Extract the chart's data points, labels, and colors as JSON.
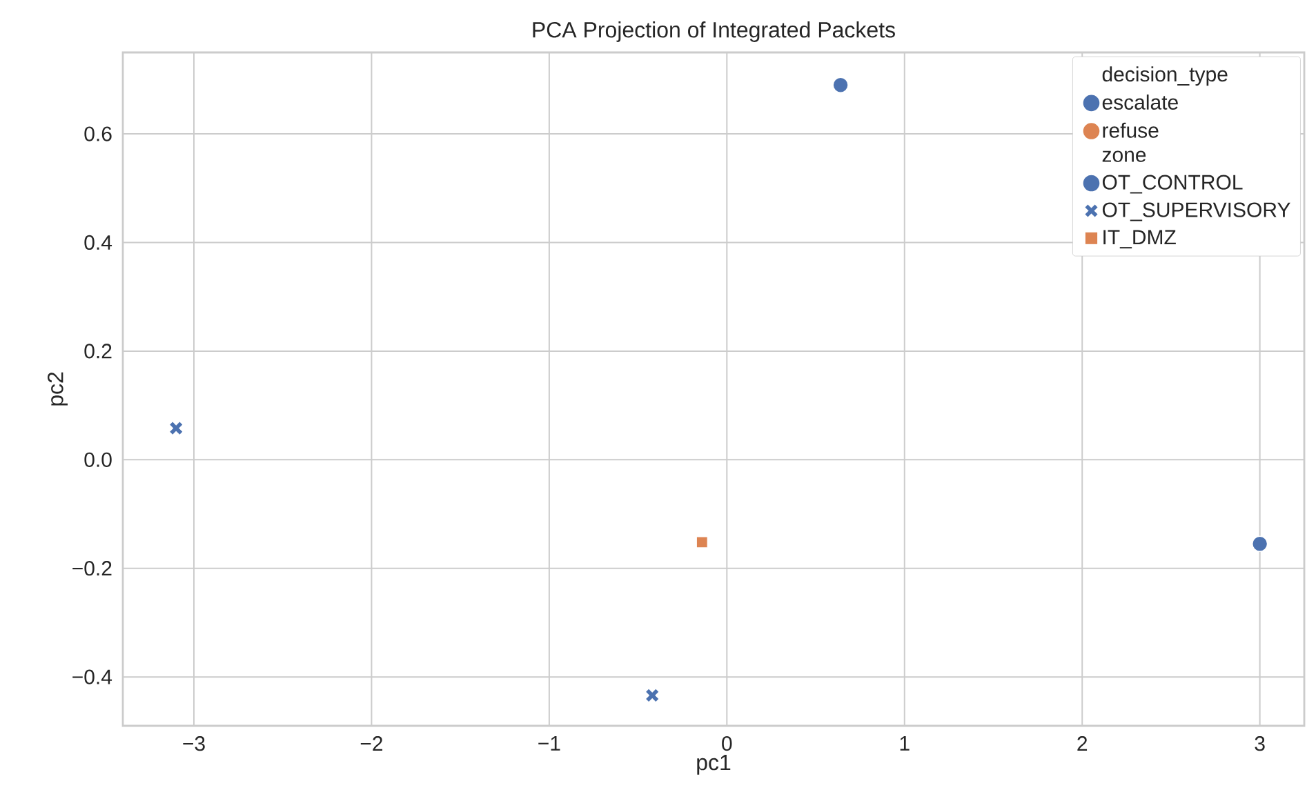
{
  "chart_data": {
    "type": "scatter",
    "title": "PCA Projection of Integrated Packets",
    "xlabel": "pc1",
    "ylabel": "pc2",
    "legend_title": "decision_type",
    "annotations": [
      "escalate",
      "refuse",
      "zone"
    ],
    "series": [
      {
        "name": "OT_CONTROL",
        "color": "#4c72b0",
        "marker": "circle",
        "x": [
          0.64,
          3.0
        ],
        "values": [
          0.69,
          -0.155
        ]
      },
      {
        "name": "OT_SUPERVISORY",
        "color": "#4c72b0",
        "marker": "cross",
        "x": [
          -3.1,
          -0.42
        ],
        "values": [
          0.058,
          -0.434
        ]
      },
      {
        "name": "IT_DMZ",
        "color": "#dd8452",
        "marker": "square",
        "x": [
          -0.14
        ],
        "values": [
          -0.152
        ]
      }
    ],
    "xlim": [
      -3.4,
      3.25
    ],
    "ylim": [
      -0.49,
      0.75
    ],
    "xticks": [
      {
        "value": -3,
        "label": "−3"
      },
      {
        "value": -2,
        "label": "−2"
      },
      {
        "value": -1,
        "label": "−1"
      },
      0,
      1,
      2,
      3
    ],
    "yticks": [
      {
        "value": -0.4,
        "label": "−0.4"
      },
      {
        "value": -0.2,
        "label": "−0.2"
      },
      {
        "value": 0,
        "label": "0.0"
      },
      {
        "value": 0.2,
        "label": "0.2"
      },
      {
        "value": 0.4,
        "label": "0.4"
      },
      {
        "value": 0.6,
        "label": "0.6"
      }
    ],
    "grid": true,
    "legend": "top right"
  }
}
